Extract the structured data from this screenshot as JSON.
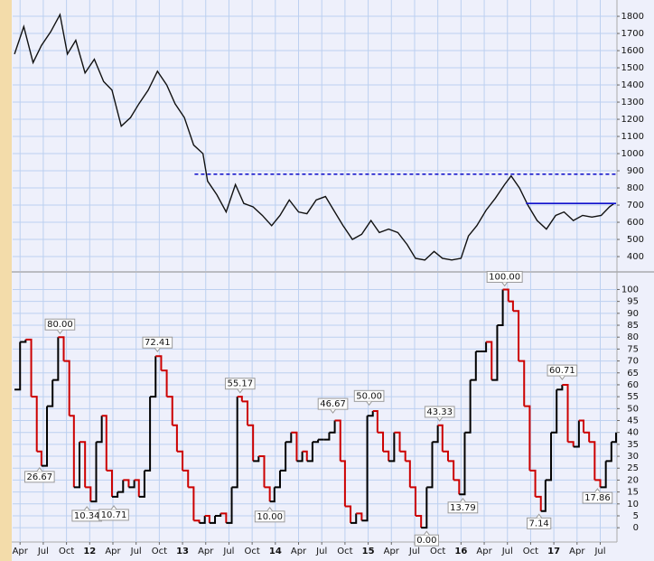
{
  "chart_data": [
    {
      "type": "line",
      "color": "#111111",
      "grid": true,
      "x": [
        2011.19,
        2011.29,
        2011.39,
        2011.48,
        2011.58,
        2011.68,
        2011.76,
        2011.85,
        2011.95,
        2012.05,
        2012.15,
        2012.24,
        2012.34,
        2012.44,
        2012.53,
        2012.63,
        2012.73,
        2012.83,
        2012.92,
        2013.02,
        2013.12,
        2013.22,
        2013.27,
        2013.37,
        2013.47,
        2013.57,
        2013.66,
        2013.76,
        2013.86,
        2013.96,
        2014.05,
        2014.15,
        2014.25,
        2014.34,
        2014.44,
        2014.54,
        2014.64,
        2014.73,
        2014.83,
        2014.93,
        2015.03,
        2015.12,
        2015.22,
        2015.32,
        2015.42,
        2015.51,
        2015.61,
        2015.71,
        2015.8,
        2015.9,
        2016.0,
        2016.08,
        2016.17,
        2016.27,
        2016.37,
        2016.47,
        2016.54,
        2016.63,
        2016.72,
        2016.82,
        2016.92,
        2017.02,
        2017.11,
        2017.21,
        2017.31,
        2017.41,
        2017.51,
        2017.6,
        2017.65
      ],
      "values": [
        1580,
        1740,
        1530,
        1630,
        1710,
        1810,
        1580,
        1660,
        1470,
        1550,
        1420,
        1370,
        1160,
        1210,
        1290,
        1370,
        1480,
        1400,
        1290,
        1210,
        1050,
        1000,
        840,
        760,
        660,
        820,
        710,
        690,
        640,
        580,
        640,
        730,
        660,
        650,
        730,
        750,
        660,
        580,
        500,
        530,
        610,
        540,
        560,
        540,
        470,
        390,
        380,
        430,
        390,
        380,
        390,
        520,
        580,
        670,
        740,
        820,
        870,
        800,
        700,
        610,
        560,
        640,
        660,
        610,
        640,
        630,
        640,
        690,
        710
      ],
      "hlines": [
        {
          "value": 880,
          "x": [
            2013.13,
            2017.67
          ],
          "color": "#1a1acc",
          "dashed": true
        },
        {
          "value": 710,
          "x": [
            2016.7,
            2017.67
          ],
          "color": "#1010cc",
          "dashed": false
        }
      ],
      "xlim": [
        2011.17,
        2017.68
      ],
      "ylim": [
        316,
        1895
      ],
      "yticks": [
        400,
        500,
        600,
        700,
        800,
        900,
        1000,
        1100,
        1200,
        1300,
        1400,
        1500,
        1600,
        1700,
        1800
      ]
    },
    {
      "type": "step",
      "up_color": "#000000",
      "down_color": "#cc0000",
      "grid": true,
      "x": [
        2011.19,
        2011.25,
        2011.31,
        2011.37,
        2011.43,
        2011.48,
        2011.54,
        2011.6,
        2011.66,
        2011.72,
        2011.78,
        2011.83,
        2011.89,
        2011.95,
        2012.01,
        2012.07,
        2012.13,
        2012.18,
        2012.24,
        2012.3,
        2012.36,
        2012.42,
        2012.48,
        2012.53,
        2012.59,
        2012.65,
        2012.71,
        2012.77,
        2012.83,
        2012.89,
        2012.94,
        2013.0,
        2013.06,
        2013.12,
        2013.18,
        2013.24,
        2013.29,
        2013.35,
        2013.41,
        2013.47,
        2013.53,
        2013.59,
        2013.64,
        2013.7,
        2013.76,
        2013.82,
        2013.88,
        2013.94,
        2013.99,
        2014.05,
        2014.11,
        2014.17,
        2014.23,
        2014.29,
        2014.34,
        2014.4,
        2014.46,
        2014.52,
        2014.58,
        2014.64,
        2014.7,
        2014.75,
        2014.81,
        2014.87,
        2014.93,
        2014.99,
        2015.05,
        2015.1,
        2015.16,
        2015.22,
        2015.28,
        2015.34,
        2015.4,
        2015.45,
        2015.51,
        2015.57,
        2015.63,
        2015.69,
        2015.75,
        2015.8,
        2015.86,
        2015.92,
        2015.98,
        2016.04,
        2016.1,
        2016.16,
        2016.21,
        2016.27,
        2016.33,
        2016.39,
        2016.45,
        2016.51,
        2016.56,
        2016.62,
        2016.68,
        2016.74,
        2016.8,
        2016.86,
        2016.91,
        2016.97,
        2017.03,
        2017.09,
        2017.15,
        2017.21,
        2017.27,
        2017.32,
        2017.38,
        2017.44,
        2017.5,
        2017.56,
        2017.62,
        2017.67
      ],
      "values": [
        58,
        78,
        79,
        55,
        32,
        26,
        51,
        62,
        80,
        70,
        47,
        17,
        36,
        17,
        11,
        36,
        47,
        24,
        13,
        15,
        20,
        17,
        20,
        13,
        24,
        55,
        72,
        66,
        55,
        43,
        32,
        24,
        17,
        3,
        2,
        5,
        2,
        5,
        6,
        2,
        17,
        55,
        53,
        43,
        28,
        30,
        17,
        11,
        17,
        24,
        36,
        40,
        28,
        32,
        28,
        36,
        37,
        37,
        40,
        45,
        28,
        9,
        2,
        6,
        3,
        47,
        49,
        40,
        32,
        28,
        40,
        32,
        28,
        17,
        5,
        0,
        17,
        36,
        43,
        32,
        28,
        20,
        14,
        40,
        62,
        74,
        74,
        78,
        62,
        85,
        100,
        95,
        91,
        70,
        51,
        24,
        13,
        7,
        20,
        40,
        58,
        60,
        36,
        34,
        45,
        40,
        36,
        20,
        17,
        28,
        36,
        40
      ],
      "annotations": {
        "x": [
          2011.68,
          2011.46,
          2011.97,
          2012.26,
          2012.73,
          2013.62,
          2013.94,
          2014.62,
          2015.01,
          2015.63,
          2015.77,
          2016.02,
          2016.47,
          2016.84,
          2017.09,
          2017.47
        ],
        "values": [
          80,
          26.67,
          10.34,
          10.71,
          72.41,
          55.17,
          10,
          46.67,
          50,
          0,
          43.33,
          13.79,
          100,
          7.14,
          60.71,
          17.86
        ],
        "value_labels": [
          "80.00",
          "26.67",
          "10.34",
          "10.71",
          "72.41",
          "55.17",
          "10.00",
          "46.67",
          "50.00",
          "0.00",
          "43.33",
          "13.79",
          "100.00",
          "7.14",
          "60.71",
          "17.86"
        ],
        "positions": [
          "above",
          "below",
          "below",
          "below",
          "above",
          "above",
          "below",
          "above",
          "above",
          "below",
          "above",
          "below",
          "above",
          "below",
          "above",
          "below"
        ]
      },
      "xlim": [
        2011.17,
        2017.68
      ],
      "ylim": [
        -6,
        107
      ],
      "yticks": [
        0,
        5,
        10,
        15,
        20,
        25,
        30,
        35,
        40,
        45,
        50,
        55,
        60,
        65,
        70,
        75,
        80,
        85,
        90,
        95,
        100
      ],
      "xticks": [
        {
          "value": 2011.25,
          "label": "Apr"
        },
        {
          "value": 2011.5,
          "label": "Jul"
        },
        {
          "value": 2011.75,
          "label": "Oct"
        },
        {
          "value": 2012,
          "label": "12"
        },
        {
          "value": 2012.25,
          "label": "Apr"
        },
        {
          "value": 2012.5,
          "label": "Jul"
        },
        {
          "value": 2012.75,
          "label": "Oct"
        },
        {
          "value": 2013,
          "label": "13"
        },
        {
          "value": 2013.25,
          "label": "Apr"
        },
        {
          "value": 2013.5,
          "label": "Jul"
        },
        {
          "value": 2013.75,
          "label": "Oct"
        },
        {
          "value": 2014,
          "label": "14"
        },
        {
          "value": 2014.25,
          "label": "Apr"
        },
        {
          "value": 2014.5,
          "label": "Jul"
        },
        {
          "value": 2014.75,
          "label": "Oct"
        },
        {
          "value": 2015,
          "label": "15"
        },
        {
          "value": 2015.25,
          "label": "Apr"
        },
        {
          "value": 2015.5,
          "label": "Jul"
        },
        {
          "value": 2015.75,
          "label": "Oct"
        },
        {
          "value": 2016,
          "label": "16"
        },
        {
          "value": 2016.25,
          "label": "Apr"
        },
        {
          "value": 2016.5,
          "label": "Jul"
        },
        {
          "value": 2016.75,
          "label": "Oct"
        },
        {
          "value": 2017,
          "label": "17"
        },
        {
          "value": 2017.25,
          "label": "Apr"
        },
        {
          "value": 2017.5,
          "label": "Jul"
        }
      ]
    }
  ]
}
